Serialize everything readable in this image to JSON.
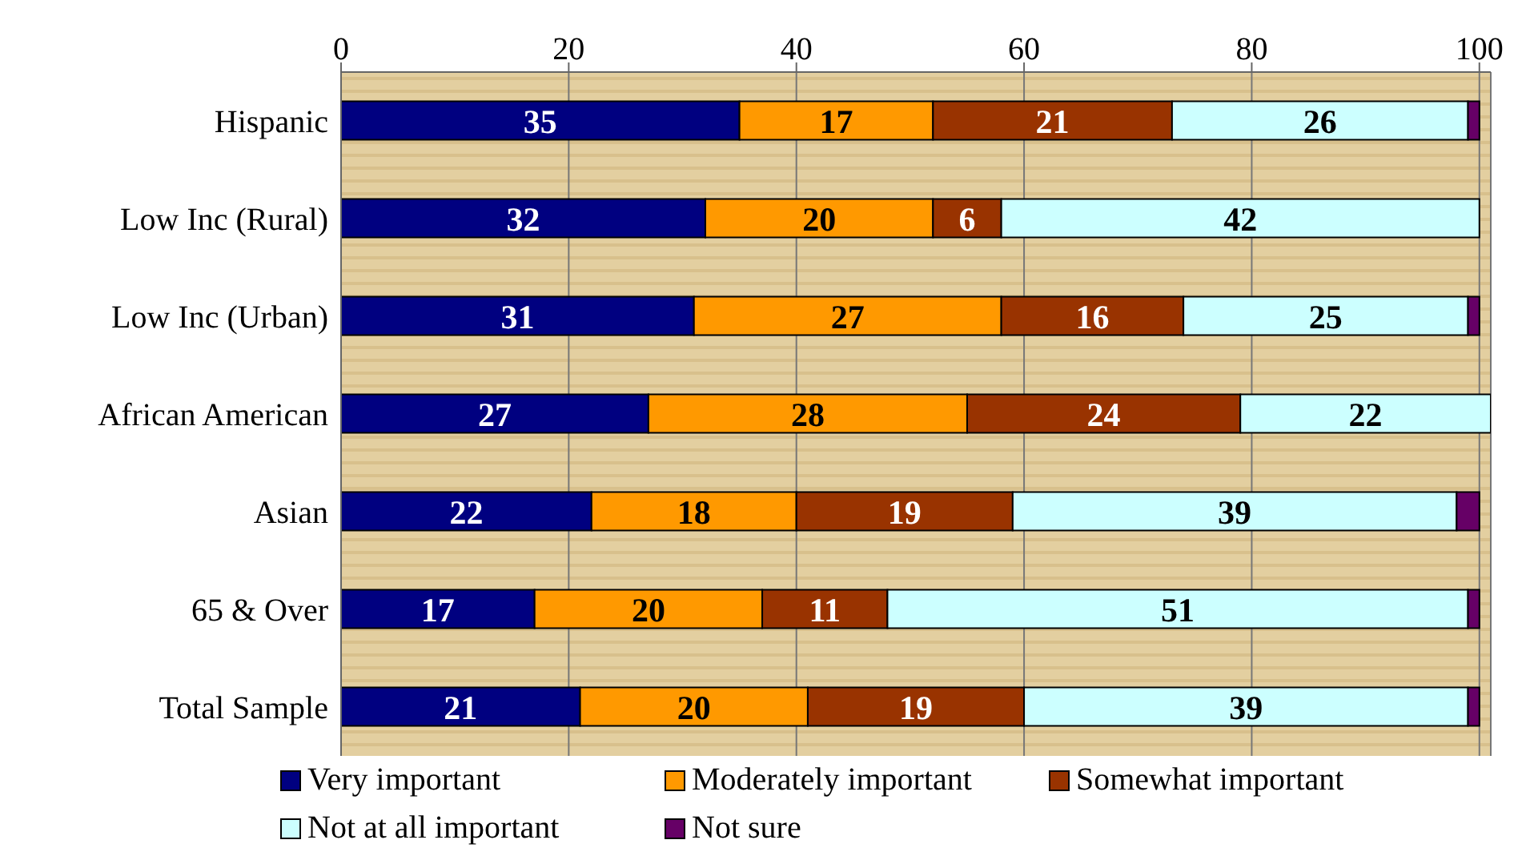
{
  "chart_data": {
    "type": "bar",
    "orientation": "horizontal",
    "stacked": true,
    "categories": [
      "Hispanic",
      "Low Inc (Rural)",
      "Low Inc (Urban)",
      "African American",
      "Asian",
      "65 & Over",
      "Total Sample"
    ],
    "series": [
      {
        "name": "Very important",
        "color": "#000080",
        "values": [
          35,
          32,
          31,
          27,
          22,
          17,
          21
        ],
        "value_labels": [
          "35",
          "32",
          "31",
          "27",
          "22",
          "17",
          "21"
        ]
      },
      {
        "name": "Moderately important",
        "color": "#ff9900",
        "values": [
          17,
          20,
          27,
          28,
          18,
          20,
          20
        ],
        "value_labels": [
          "17",
          "20",
          "27",
          "28",
          "18",
          "20",
          "20"
        ]
      },
      {
        "name": "Somewhat important",
        "color": "#993300",
        "values": [
          21,
          6,
          16,
          24,
          19,
          11,
          19
        ],
        "value_labels": [
          "21",
          "6",
          "16",
          "24",
          "19",
          "11",
          "19"
        ]
      },
      {
        "name": "Not at all important",
        "color": "#ccffff",
        "values": [
          26,
          42,
          25,
          22,
          39,
          51,
          39
        ],
        "value_labels": [
          "26",
          "42",
          "25",
          "22",
          "39",
          "51",
          "39"
        ]
      },
      {
        "name": "Not sure",
        "color": "#660066",
        "values": [
          1,
          0,
          1,
          null,
          2,
          1,
          1
        ]
      }
    ],
    "xlim": [
      0,
      101
    ],
    "xticks": [
      0,
      20,
      40,
      60,
      80,
      100
    ],
    "grid": "x",
    "legend": "bottom"
  }
}
